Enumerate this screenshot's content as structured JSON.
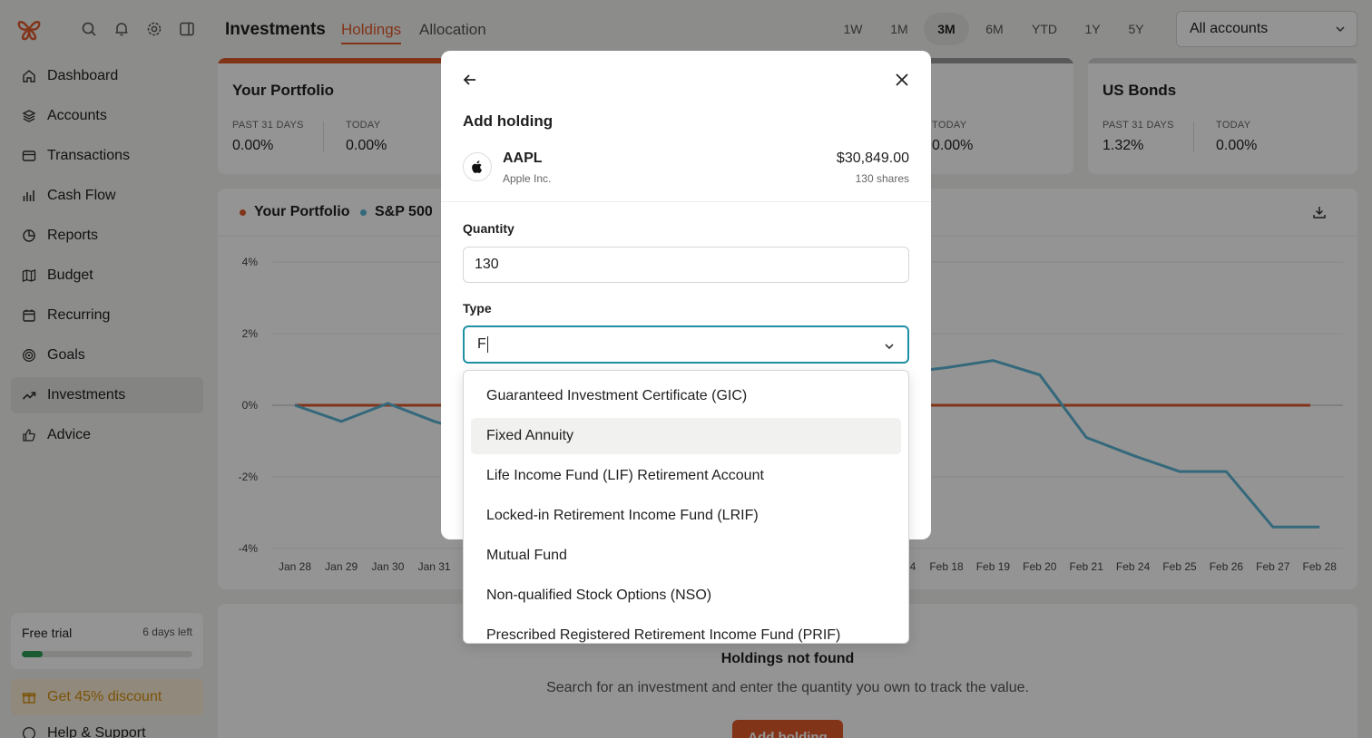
{
  "sidebar": {
    "items": [
      {
        "label": "Dashboard",
        "icon": "home-icon"
      },
      {
        "label": "Accounts",
        "icon": "layers-icon"
      },
      {
        "label": "Transactions",
        "icon": "credit-card-icon"
      },
      {
        "label": "Cash Flow",
        "icon": "bar-chart-icon"
      },
      {
        "label": "Reports",
        "icon": "pie-chart-icon"
      },
      {
        "label": "Budget",
        "icon": "map-icon"
      },
      {
        "label": "Recurring",
        "icon": "calendar-icon"
      },
      {
        "label": "Goals",
        "icon": "target-icon"
      },
      {
        "label": "Investments",
        "icon": "trending-up-icon",
        "active": true
      },
      {
        "label": "Advice",
        "icon": "thumbs-up-icon"
      }
    ],
    "trial": {
      "label": "Free trial",
      "days_left": "6 days left",
      "progress": 0.12
    },
    "discount": "Get 45% discount",
    "help": "Help & Support"
  },
  "header": {
    "title": "Investments",
    "tabs": [
      {
        "label": "Holdings",
        "active": true
      },
      {
        "label": "Allocation",
        "active": false
      }
    ],
    "ranges": [
      "1W",
      "1M",
      "3M",
      "6M",
      "YTD",
      "1Y",
      "5Y"
    ],
    "active_range": "3M",
    "account_select": "All accounts"
  },
  "cards": {
    "portfolio": {
      "title": "Your Portfolio",
      "past_label": "PAST 31 DAYS",
      "past_value": "0.00%",
      "today_label": "TODAY",
      "today_value": "0.00%"
    },
    "third": {
      "today_label": "TODAY",
      "today_value": "0.00%"
    },
    "bonds": {
      "title": "US Bonds",
      "past_label": "PAST 31 DAYS",
      "past_value": "1.32%",
      "today_label": "TODAY",
      "today_value": "0.00%"
    }
  },
  "chart_data": {
    "type": "line",
    "legend": [
      "Your Portfolio",
      "S&P 500"
    ],
    "colors": {
      "portfolio": "#e05a2b",
      "sp500": "#5bb4d4"
    },
    "y_ticks": [
      "4%",
      "2%",
      "0%",
      "-2%",
      "-4%"
    ],
    "ylim": [
      -4,
      4
    ],
    "x_visible_left": [
      "Jan 28",
      "Jan 29",
      "Jan 30",
      "Jan 31"
    ],
    "x_visible_right": [
      "Feb 18",
      "Feb 19",
      "Feb 20",
      "Feb 21",
      "Feb 24",
      "Feb 25",
      "Feb 26",
      "Feb 27",
      "Feb 28"
    ],
    "partial_tick": "4",
    "series": [
      {
        "name": "Your Portfolio",
        "left": [
          0,
          0,
          0,
          0
        ],
        "right": [
          0,
          0,
          0,
          0,
          0,
          0,
          0,
          0,
          0
        ]
      },
      {
        "name": "S&P 500",
        "left": [
          0,
          -0.45,
          0.05,
          -0.45
        ],
        "right": [
          1.05,
          1.25,
          0.85,
          -0.9,
          -1.4,
          -1.85,
          -1.85,
          -3.4,
          -3.4
        ],
        "right_start": 1.0
      }
    ]
  },
  "holdings_empty": {
    "title": "Holdings not found",
    "subtitle": "Search for an investment and enter the quantity you own to track the value.",
    "button": "Add holding"
  },
  "modal": {
    "title": "Add holding",
    "holding": {
      "ticker": "AAPL",
      "name": "Apple Inc.",
      "value": "$30,849.00",
      "shares": "130 shares"
    },
    "quantity_label": "Quantity",
    "quantity_value": "130",
    "type_label": "Type",
    "type_value": "F"
  },
  "dropdown": {
    "options": [
      "Guaranteed Investment Certificate (GIC)",
      "Fixed Annuity",
      "Life Income Fund (LIF) Retirement Account",
      "Locked-in Retirement Income Fund (LRIF)",
      "Mutual Fund",
      "Non-qualified Stock Options (NSO)",
      "Prescribed Registered Retirement Income Fund (PRIF)"
    ],
    "hovered_index": 1
  }
}
